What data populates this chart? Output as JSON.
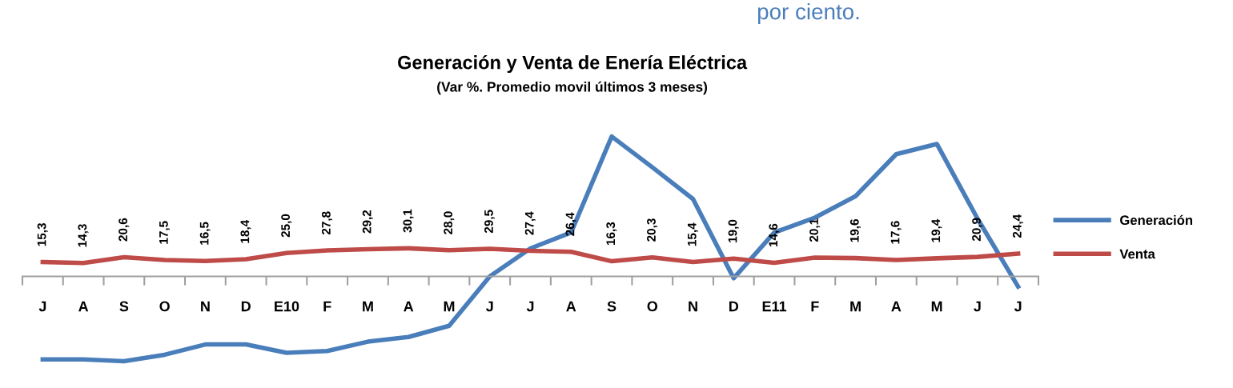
{
  "chart_data": {
    "type": "line",
    "title": "Generación y Venta de Enería Eléctrica",
    "subtitle": "(Var %. Promedio movil últimos 3 meses)",
    "annotations": [
      "por ciento."
    ],
    "categories": [
      "J",
      "A",
      "S",
      "O",
      "N",
      "D",
      "E10",
      "F",
      "M",
      "A",
      "M",
      "J",
      "J",
      "A",
      "S",
      "O",
      "N",
      "D",
      "E11",
      "F",
      "M",
      "A",
      "M",
      "J",
      "J"
    ],
    "series": [
      {
        "name": "Generación",
        "color": "#4a7ebb",
        "values": [
          -89,
          -89,
          -91,
          -84,
          -73,
          -73,
          -82,
          -80,
          -70,
          -65,
          -53,
          0,
          30,
          47,
          150,
          117,
          83,
          -2,
          47,
          63,
          86,
          131,
          142,
          62,
          -11
        ]
      },
      {
        "name": "Venta",
        "color": "#be4b48",
        "values": [
          15.3,
          14.3,
          20.6,
          17.5,
          16.5,
          18.4,
          25.0,
          27.8,
          29.2,
          30.1,
          28.0,
          29.5,
          27.4,
          26.4,
          16.3,
          20.3,
          15.4,
          19.0,
          14.6,
          20.1,
          19.6,
          17.6,
          19.4,
          20.9,
          24.4
        ],
        "value_labels": [
          "15,3",
          "14,3",
          "20,6",
          "17,5",
          "16,5",
          "18,4",
          "25,0",
          "27,8",
          "29,2",
          "30,1",
          "28,0",
          "29,5",
          "27,4",
          "26,4",
          "16,3",
          "20,3",
          "15,4",
          "19,0",
          "14,6",
          "20,1",
          "19,6",
          "17,6",
          "19,4",
          "20,9",
          "24,4"
        ]
      }
    ],
    "legend": "right",
    "grid": false,
    "marker": "none",
    "line_style": "solid"
  }
}
